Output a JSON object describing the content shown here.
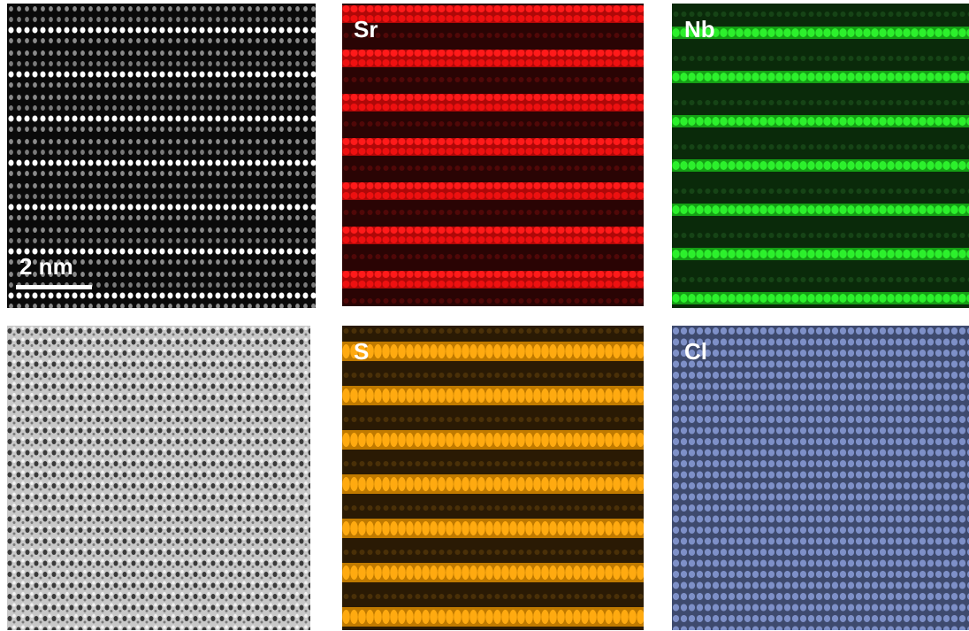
{
  "scale_bar": {
    "label": "2 nm"
  },
  "panels": [
    {
      "label": "Sr"
    },
    {
      "label": "Nb"
    },
    {
      "label": "S"
    },
    {
      "label": "Cl"
    }
  ]
}
